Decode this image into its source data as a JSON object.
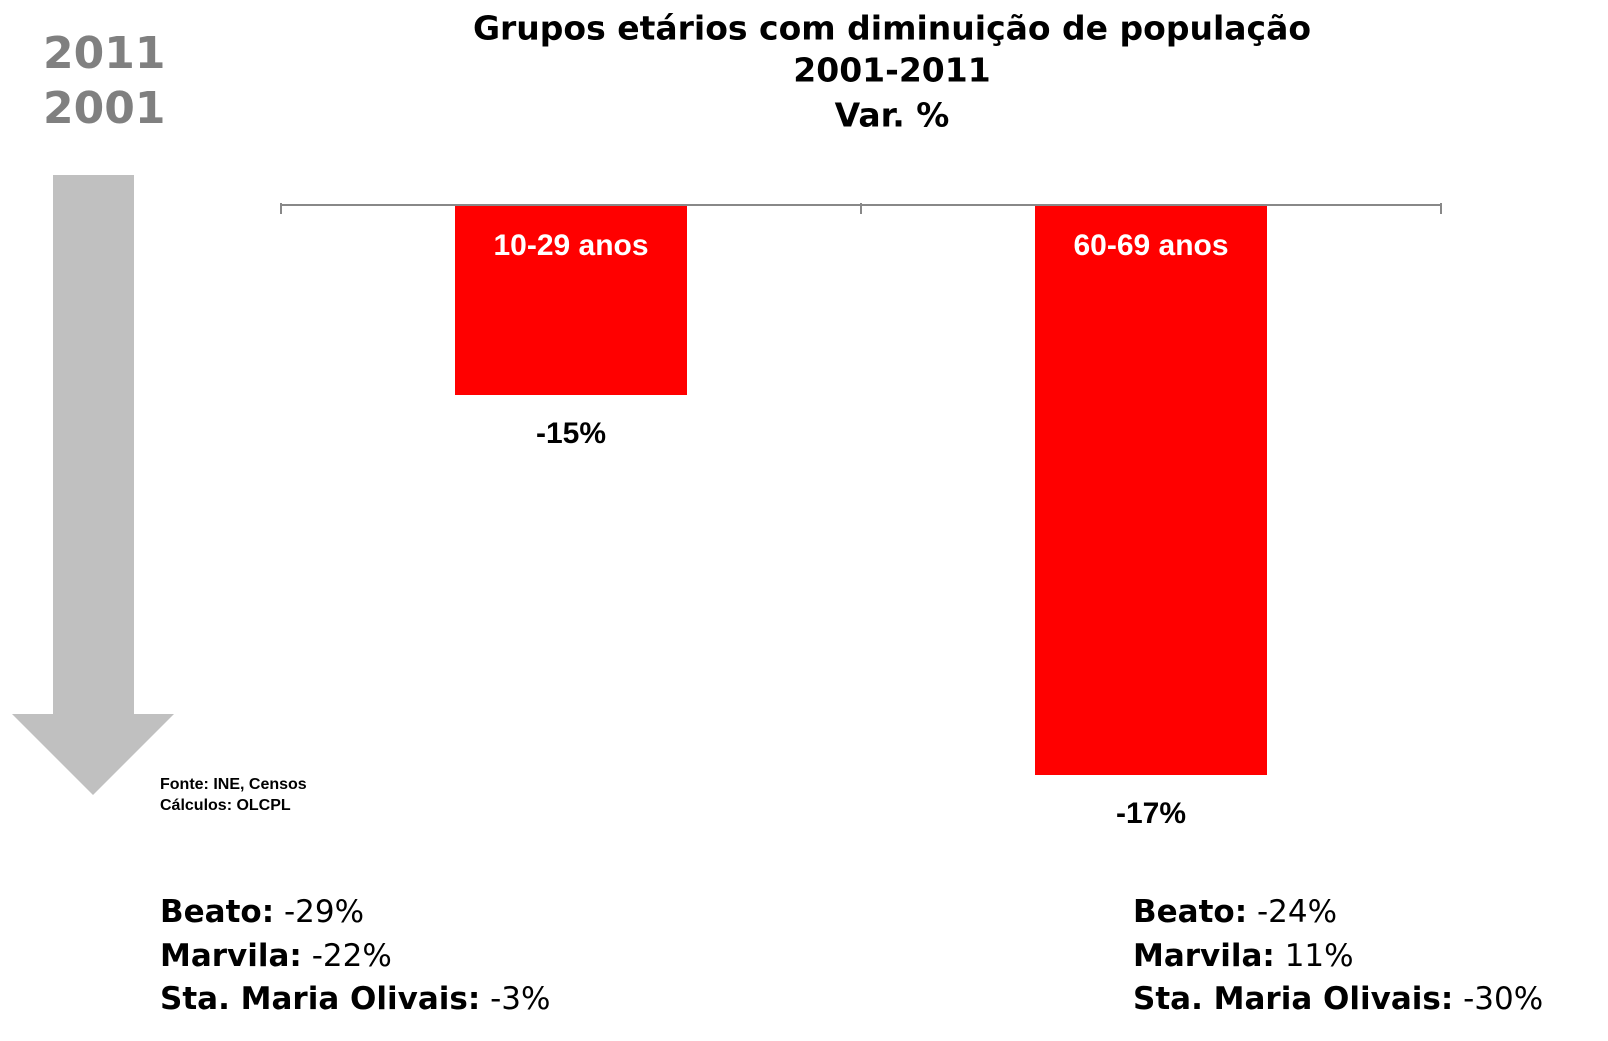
{
  "chart_data": {
    "type": "bar",
    "title": [
      "Grupos etários com diminuição de população",
      "2001-2011",
      "Var. %"
    ],
    "categories": [
      "10-29 anos",
      "60-69 anos"
    ],
    "values": [
      -15,
      -17
    ],
    "value_labels": [
      "-15%",
      "-17%"
    ],
    "color": "#ff0000",
    "ylim": [
      -17,
      -14
    ],
    "years": [
      "2011",
      "2001"
    ],
    "source": [
      "Fonte: INE, Censos",
      "Cálculos: OLCPL"
    ],
    "notes": [
      [
        {
          "label": "Beato:",
          "value": "-29%"
        },
        {
          "label": "Marvila:",
          "value": "-22%"
        },
        {
          "label": "Sta. Maria Olivais:",
          "value": "-3%"
        }
      ],
      [
        {
          "label": "Beato:",
          "value": "-24%"
        },
        {
          "label": "Marvila:",
          "value": "11%"
        },
        {
          "label": "Sta. Maria Olivais:",
          "value": "-30%"
        }
      ]
    ]
  }
}
